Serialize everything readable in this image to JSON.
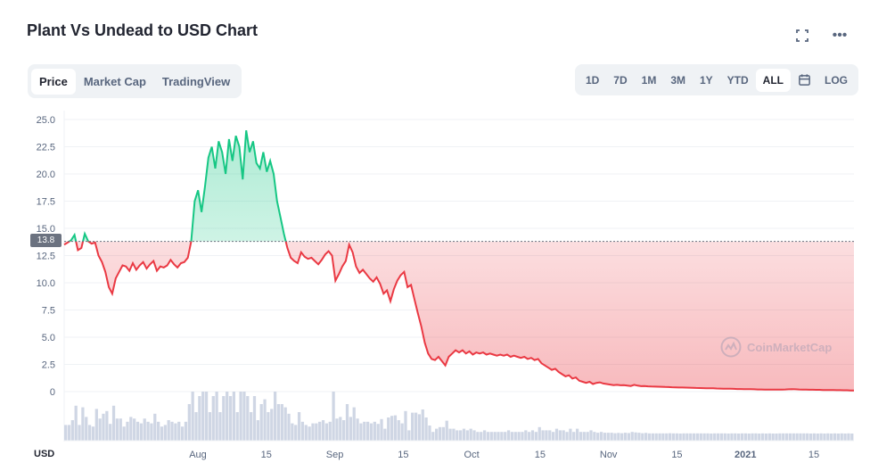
{
  "header": {
    "title": "Plant Vs Undead to USD Chart",
    "fullscreen_icon": "expand-icon",
    "more_icon": "more-horizontal-icon",
    "more_glyph": "•••"
  },
  "tabs": [
    {
      "label": "Price",
      "active": true
    },
    {
      "label": "Market Cap",
      "active": false
    },
    {
      "label": "TradingView",
      "active": false
    }
  ],
  "ranges": [
    {
      "label": "1D",
      "active": false
    },
    {
      "label": "7D",
      "active": false
    },
    {
      "label": "1M",
      "active": false
    },
    {
      "label": "3M",
      "active": false
    },
    {
      "label": "1Y",
      "active": false
    },
    {
      "label": "YTD",
      "active": false
    },
    {
      "label": "ALL",
      "active": true
    }
  ],
  "calendar_icon": "calendar-icon",
  "log_label": "LOG",
  "currency_label": "USD",
  "watermark": "CoinMarketCap",
  "colors": {
    "up": "#16c784",
    "down": "#ea3943",
    "grid": "#eff2f5",
    "volume": "#cfd6e4",
    "baseline": "#6b7280"
  },
  "chart_data": {
    "type": "area",
    "title": "Plant Vs Undead to USD Chart",
    "ylabel": "USD",
    "ylim": [
      0,
      25
    ],
    "yticks": [
      "0",
      "2.5",
      "5.0",
      "7.5",
      "10.0",
      "12.5",
      "15.0",
      "17.5",
      "20.0",
      "22.5",
      "25.0"
    ],
    "xticks": [
      "Aug",
      "15",
      "Sep",
      "15",
      "Oct",
      "15",
      "Nov",
      "15",
      "2021",
      "15"
    ],
    "baseline_value": 13.8,
    "baseline_label": "13.8",
    "grid": true,
    "series": [
      {
        "points": [
          [
            0,
            13.5
          ],
          [
            1,
            13.7
          ],
          [
            2,
            13.9
          ],
          [
            3,
            14.4
          ],
          [
            4,
            13.0
          ],
          [
            5,
            13.2
          ],
          [
            6,
            14.5
          ],
          [
            7,
            13.8
          ],
          [
            8,
            13.6
          ],
          [
            9,
            13.7
          ],
          [
            10,
            12.5
          ],
          [
            11,
            11.9
          ],
          [
            12,
            11.0
          ],
          [
            13,
            9.6
          ],
          [
            14,
            9.0
          ],
          [
            15,
            10.4
          ],
          [
            16,
            11.0
          ],
          [
            17,
            11.6
          ],
          [
            18,
            11.5
          ],
          [
            19,
            11.1
          ],
          [
            20,
            11.8
          ],
          [
            21,
            11.2
          ],
          [
            22,
            11.6
          ],
          [
            23,
            11.9
          ],
          [
            24,
            11.3
          ],
          [
            25,
            11.7
          ],
          [
            26,
            12.0
          ],
          [
            27,
            11.1
          ],
          [
            28,
            11.5
          ],
          [
            29,
            11.4
          ],
          [
            30,
            11.6
          ],
          [
            31,
            12.1
          ],
          [
            32,
            11.7
          ],
          [
            33,
            11.4
          ],
          [
            34,
            11.8
          ],
          [
            35,
            11.9
          ],
          [
            36,
            12.3
          ],
          [
            37,
            13.8
          ],
          [
            38,
            17.5
          ],
          [
            39,
            18.5
          ],
          [
            40,
            16.5
          ],
          [
            41,
            18.8
          ],
          [
            42,
            21.5
          ],
          [
            43,
            22.5
          ],
          [
            44,
            20.5
          ],
          [
            45,
            23.0
          ],
          [
            46,
            22.0
          ],
          [
            47,
            20.0
          ],
          [
            48,
            23.2
          ],
          [
            49,
            21.2
          ],
          [
            50,
            23.5
          ],
          [
            51,
            22.5
          ],
          [
            52,
            19.5
          ],
          [
            53,
            24.0
          ],
          [
            54,
            22.0
          ],
          [
            55,
            23.0
          ],
          [
            56,
            21.0
          ],
          [
            57,
            20.5
          ],
          [
            58,
            22.0
          ],
          [
            59,
            20.2
          ],
          [
            60,
            21.2
          ],
          [
            61,
            20.0
          ],
          [
            62,
            17.5
          ],
          [
            63,
            16.0
          ],
          [
            64,
            14.5
          ],
          [
            65,
            13.2
          ],
          [
            66,
            12.3
          ],
          [
            67,
            12.0
          ],
          [
            68,
            11.8
          ],
          [
            69,
            12.8
          ],
          [
            70,
            12.4
          ],
          [
            71,
            12.2
          ],
          [
            72,
            12.3
          ],
          [
            73,
            12.0
          ],
          [
            74,
            11.7
          ],
          [
            75,
            12.1
          ],
          [
            76,
            12.6
          ],
          [
            77,
            12.9
          ],
          [
            78,
            12.5
          ],
          [
            79,
            10.2
          ],
          [
            80,
            10.8
          ],
          [
            81,
            11.5
          ],
          [
            82,
            12.0
          ],
          [
            83,
            13.5
          ],
          [
            84,
            12.8
          ],
          [
            85,
            11.5
          ],
          [
            86,
            10.9
          ],
          [
            87,
            11.2
          ],
          [
            88,
            10.8
          ],
          [
            89,
            10.4
          ],
          [
            90,
            10.1
          ],
          [
            91,
            10.5
          ],
          [
            92,
            9.9
          ],
          [
            93,
            9.0
          ],
          [
            94,
            9.3
          ],
          [
            95,
            8.3
          ],
          [
            96,
            9.4
          ],
          [
            97,
            10.2
          ],
          [
            98,
            10.7
          ],
          [
            99,
            11.0
          ],
          [
            100,
            9.6
          ],
          [
            101,
            9.8
          ],
          [
            102,
            8.5
          ],
          [
            103,
            7.2
          ],
          [
            104,
            6.0
          ],
          [
            105,
            4.5
          ],
          [
            106,
            3.5
          ],
          [
            107,
            3.0
          ],
          [
            108,
            2.9
          ],
          [
            109,
            3.2
          ],
          [
            110,
            2.8
          ],
          [
            111,
            2.4
          ],
          [
            112,
            3.2
          ],
          [
            113,
            3.5
          ],
          [
            114,
            3.8
          ],
          [
            115,
            3.6
          ],
          [
            116,
            3.8
          ],
          [
            117,
            3.5
          ],
          [
            118,
            3.7
          ],
          [
            119,
            3.4
          ],
          [
            120,
            3.6
          ],
          [
            121,
            3.5
          ],
          [
            122,
            3.6
          ],
          [
            123,
            3.4
          ],
          [
            124,
            3.5
          ],
          [
            125,
            3.4
          ],
          [
            126,
            3.3
          ],
          [
            127,
            3.4
          ],
          [
            128,
            3.3
          ],
          [
            129,
            3.4
          ],
          [
            130,
            3.2
          ],
          [
            131,
            3.3
          ],
          [
            132,
            3.2
          ],
          [
            133,
            3.1
          ],
          [
            134,
            3.2
          ],
          [
            135,
            3.0
          ],
          [
            136,
            3.1
          ],
          [
            137,
            2.9
          ],
          [
            138,
            3.0
          ],
          [
            139,
            2.6
          ],
          [
            140,
            2.4
          ],
          [
            141,
            2.2
          ],
          [
            142,
            2.0
          ],
          [
            143,
            2.1
          ],
          [
            144,
            1.8
          ],
          [
            145,
            1.6
          ],
          [
            146,
            1.4
          ],
          [
            147,
            1.5
          ],
          [
            148,
            1.2
          ],
          [
            149,
            1.3
          ],
          [
            150,
            1.0
          ],
          [
            151,
            0.9
          ],
          [
            152,
            0.8
          ],
          [
            153,
            0.9
          ],
          [
            154,
            0.7
          ],
          [
            155,
            0.8
          ],
          [
            156,
            0.85
          ],
          [
            157,
            0.75
          ],
          [
            158,
            0.7
          ],
          [
            159,
            0.65
          ],
          [
            160,
            0.6
          ],
          [
            161,
            0.62
          ],
          [
            162,
            0.58
          ],
          [
            163,
            0.6
          ],
          [
            164,
            0.55
          ],
          [
            165,
            0.52
          ],
          [
            166,
            0.62
          ],
          [
            167,
            0.55
          ],
          [
            168,
            0.5
          ],
          [
            169,
            0.52
          ],
          [
            170,
            0.48
          ],
          [
            171,
            0.47
          ],
          [
            172,
            0.46
          ],
          [
            173,
            0.45
          ],
          [
            174,
            0.44
          ],
          [
            175,
            0.43
          ],
          [
            176,
            0.42
          ],
          [
            177,
            0.4
          ],
          [
            178,
            0.39
          ],
          [
            179,
            0.38
          ],
          [
            180,
            0.38
          ],
          [
            181,
            0.37
          ],
          [
            182,
            0.36
          ],
          [
            183,
            0.35
          ],
          [
            184,
            0.34
          ],
          [
            185,
            0.33
          ],
          [
            186,
            0.32
          ],
          [
            187,
            0.31
          ],
          [
            188,
            0.3
          ],
          [
            189,
            0.3
          ],
          [
            190,
            0.29
          ],
          [
            191,
            0.28
          ],
          [
            192,
            0.27
          ],
          [
            193,
            0.26
          ],
          [
            194,
            0.26
          ],
          [
            195,
            0.25
          ],
          [
            196,
            0.24
          ],
          [
            197,
            0.24
          ],
          [
            198,
            0.23
          ],
          [
            199,
            0.22
          ],
          [
            200,
            0.22
          ],
          [
            201,
            0.21
          ],
          [
            202,
            0.2
          ],
          [
            203,
            0.2
          ],
          [
            204,
            0.19
          ],
          [
            205,
            0.19
          ],
          [
            206,
            0.18
          ],
          [
            207,
            0.18
          ],
          [
            208,
            0.18
          ],
          [
            209,
            0.19
          ],
          [
            210,
            0.2
          ],
          [
            211,
            0.21
          ],
          [
            212,
            0.22
          ],
          [
            213,
            0.21
          ],
          [
            214,
            0.2
          ],
          [
            215,
            0.19
          ],
          [
            216,
            0.18
          ],
          [
            217,
            0.17
          ],
          [
            218,
            0.17
          ],
          [
            219,
            0.16
          ],
          [
            220,
            0.16
          ],
          [
            221,
            0.15
          ],
          [
            222,
            0.15
          ],
          [
            223,
            0.14
          ],
          [
            224,
            0.14
          ],
          [
            225,
            0.13
          ],
          [
            226,
            0.13
          ],
          [
            227,
            0.12
          ],
          [
            228,
            0.12
          ],
          [
            229,
            0.11
          ],
          [
            230,
            0.11
          ]
        ]
      }
    ]
  }
}
